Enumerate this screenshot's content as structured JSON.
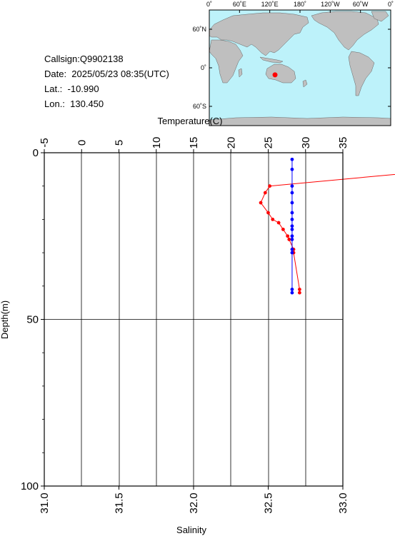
{
  "info": {
    "callsign": "Callsign:Q9902138",
    "date": "Date:  2025/05/23 08:35(UTC)",
    "lat": "Lat.:  -10.990",
    "lon": "Lon.:  130.450"
  },
  "map": {
    "top_labels": [
      "0˚",
      "60˚E",
      "120˚E",
      "180˚",
      "120˚W",
      "60˚W",
      "0˚"
    ],
    "left_labels": [
      "60˚N",
      "0˚",
      "60˚S"
    ],
    "station": {
      "lon": 130.45,
      "lat": -10.99
    },
    "ocean_color": "#bdf2fa",
    "land_color": "#bfbfbf",
    "marker_color": "#ff0000"
  },
  "chart_data": {
    "type": "line",
    "xlabel_top": "Temperature(C)",
    "xlabel_bottom": "Salinity",
    "ylabel": "Depth(m)",
    "temperature_ticks": [
      "-5",
      "0",
      "5",
      "10",
      "15",
      "20",
      "25",
      "30",
      "35"
    ],
    "salinity_ticks": [
      "31.0",
      "31.5",
      "32.0",
      "32.5",
      "33.0"
    ],
    "depth_ticks": [
      "0",
      "50",
      "100"
    ],
    "temperature_range": [
      -5,
      35
    ],
    "salinity_range": [
      31.0,
      33.0
    ],
    "depth_range": [
      0,
      100
    ],
    "grid": true,
    "series": [
      {
        "color": "#ff0000",
        "axis": "temperature",
        "points": [
          {
            "depth": 2,
            "value": 33.75
          },
          {
            "depth": 5,
            "value": 33.71
          },
          {
            "depth": 10,
            "value": 32.51
          },
          {
            "depth": 12,
            "value": 32.48
          },
          {
            "depth": 15,
            "value": 32.45
          },
          {
            "depth": 18,
            "value": 32.5
          },
          {
            "depth": 20,
            "value": 32.53
          },
          {
            "depth": 21,
            "value": 32.57
          },
          {
            "depth": 23,
            "value": 32.6
          },
          {
            "depth": 25,
            "value": 32.63
          },
          {
            "depth": 26,
            "value": 32.64
          },
          {
            "depth": 29,
            "value": 32.67
          },
          {
            "depth": 30,
            "value": 32.67
          },
          {
            "depth": 41,
            "value": 32.71
          },
          {
            "depth": 42,
            "value": 32.71
          }
        ]
      },
      {
        "color": "#0000ff",
        "axis": "temperature",
        "points": [
          {
            "depth": 2,
            "value": 28.2
          },
          {
            "depth": 5,
            "value": 28.2
          },
          {
            "depth": 10,
            "value": 28.2
          },
          {
            "depth": 12,
            "value": 28.2
          },
          {
            "depth": 15,
            "value": 28.2
          },
          {
            "depth": 18,
            "value": 28.2
          },
          {
            "depth": 20,
            "value": 28.2
          },
          {
            "depth": 22,
            "value": 28.2
          },
          {
            "depth": 23,
            "value": 28.2
          },
          {
            "depth": 25,
            "value": 28.2
          },
          {
            "depth": 26,
            "value": 28.2
          },
          {
            "depth": 29,
            "value": 28.2
          },
          {
            "depth": 30,
            "value": 28.2
          },
          {
            "depth": 41,
            "value": 28.2
          },
          {
            "depth": 42,
            "value": 28.2
          }
        ]
      }
    ]
  }
}
